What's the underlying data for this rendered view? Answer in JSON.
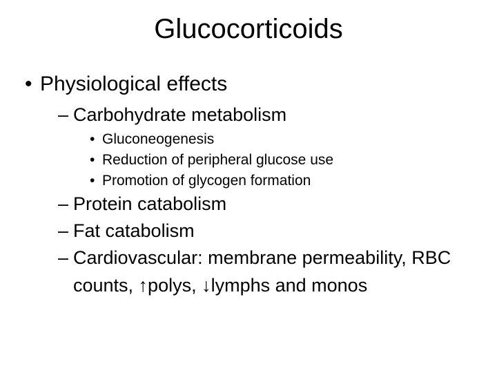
{
  "slide": {
    "title": "Glucocorticoids",
    "bullets": {
      "l1_1": "Physiological effects",
      "l2_1": "Carbohydrate metabolism",
      "l3_1": "Gluconeogenesis",
      "l3_2": "Reduction of peripheral glucose use",
      "l3_3": "Promotion of glycogen formation",
      "l2_2": "Protein catabolism",
      "l2_3": "Fat catabolism",
      "l2_4": "Cardiovascular: membrane permeability, RBC",
      "l2_4_cont": "counts, ↑polys, ↓lymphs and monos"
    }
  },
  "style": {
    "background_color": "#ffffff",
    "text_color": "#000000",
    "title_fontsize": 40,
    "level1_fontsize": 30,
    "level2_fontsize": 27,
    "level3_fontsize": 21,
    "font_family": "Arial"
  }
}
